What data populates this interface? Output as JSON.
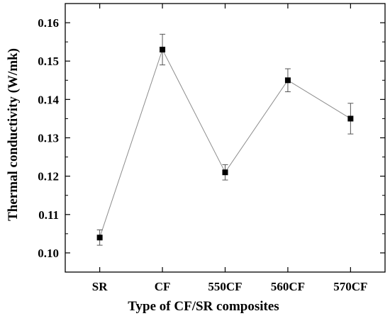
{
  "chart_data": {
    "type": "line",
    "title": "",
    "xlabel": "Type of CF/SR composites",
    "ylabel": "Thermal conductivity (W/mk)",
    "categories": [
      "SR",
      "CF",
      "550CF",
      "560CF",
      "570CF"
    ],
    "series": [
      {
        "name": "",
        "values": [
          0.104,
          0.153,
          0.121,
          0.145,
          0.135
        ],
        "error": [
          0.002,
          0.004,
          0.002,
          0.003,
          0.004
        ]
      }
    ],
    "ylim": [
      0.095,
      0.165
    ],
    "yticks": [
      "0.10",
      "0.11",
      "0.12",
      "0.13",
      "0.14",
      "0.15",
      "0.16"
    ],
    "grid": false,
    "legend": "none",
    "marker": "square",
    "colors": {
      "line": "#8c8c8c",
      "marker": "#000000",
      "axis": "#000000"
    }
  }
}
